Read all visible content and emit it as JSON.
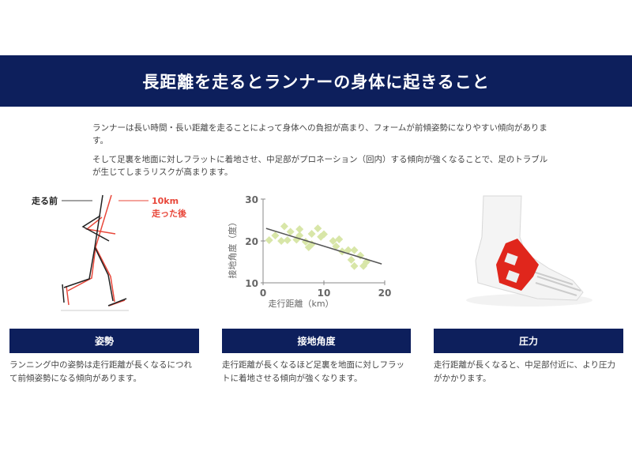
{
  "header": {
    "title": "長距離を走るとランナーの身体に起きること"
  },
  "intro": {
    "paragraphs": [
      "ランナーは長い時間・長い距離を走ることによって身体への負担が高まり、フォームが前傾姿勢になりやすい傾向があります。",
      "そして足裏を地面に対しフラットに着地させ、中足部がプロネーション（回内）する傾向が強くなることで、足のトラブルが生じてしまうリスクが高まります。"
    ]
  },
  "figure_posture": {
    "label_before": "走る前",
    "label_after_line1": "10km",
    "label_after_line2": "走った後",
    "colors": {
      "before": "#222222",
      "after": "#e8473a"
    }
  },
  "chart_data": {
    "type": "scatter",
    "xlabel": "走行距離（km）",
    "ylabel": "接地角度（度）",
    "xlim": [
      0,
      20
    ],
    "ylim": [
      10,
      30
    ],
    "xticks": [
      0,
      10,
      20
    ],
    "yticks": [
      10,
      20,
      30
    ],
    "grid": false,
    "point_color": "#d8e6a8",
    "trend_color": "#555555",
    "points": [
      [
        1,
        20.2
      ],
      [
        2,
        21.3
      ],
      [
        3,
        20
      ],
      [
        3.5,
        23.5
      ],
      [
        4,
        20.2
      ],
      [
        4.5,
        22.2
      ],
      [
        5.5,
        20.3
      ],
      [
        6,
        22.8
      ],
      [
        6,
        21.3
      ],
      [
        7,
        19.8
      ],
      [
        7.5,
        18.5
      ],
      [
        8,
        21.7
      ],
      [
        8,
        19.2
      ],
      [
        9,
        23
      ],
      [
        9.5,
        21
      ],
      [
        10,
        21.6
      ],
      [
        11.5,
        20
      ],
      [
        12,
        18.7
      ],
      [
        12.5,
        20.4
      ],
      [
        13,
        17.5
      ],
      [
        14,
        17.8
      ],
      [
        14.5,
        15.5
      ],
      [
        15,
        17.8
      ],
      [
        15,
        14
      ],
      [
        16,
        16.5
      ],
      [
        16.5,
        14
      ],
      [
        17,
        15
      ]
    ],
    "trend": [
      [
        0.5,
        23
      ],
      [
        19.5,
        14.5
      ]
    ]
  },
  "figure_foot": {
    "tape_color": "#e0261c"
  },
  "sections": [
    {
      "title": "姿勢",
      "text": "ランニング中の姿勢は走行距離が長くなるにつれて前傾姿勢になる傾向があります。"
    },
    {
      "title": "接地角度",
      "text": "走行距離が長くなるほど足裏を地面に対しフラットに着地させる傾向が強くなります。"
    },
    {
      "title": "圧力",
      "text": "走行距離が長くなると、中足部付近に、より圧力がかかります。"
    }
  ],
  "colors": {
    "navy": "#0d1f5c"
  }
}
